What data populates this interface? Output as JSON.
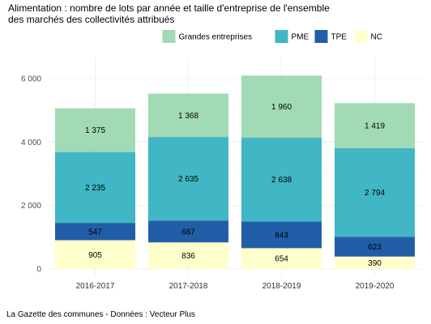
{
  "chart_data": {
    "type": "bar",
    "stacked": true,
    "title_lines": [
      "Alimentation : nombre de lots par année et taille d'entreprise de l'ensemble",
      "des marchés des collectivités attribués"
    ],
    "xlabel": "",
    "ylabel": "",
    "categories": [
      "2016-2017",
      "2017-2018",
      "2018-2019",
      "2019-2020"
    ],
    "series": [
      {
        "name": "NC",
        "color": "#FFFFCC",
        "values": [
          905,
          836,
          654,
          390
        ],
        "labels": [
          "905",
          "836",
          "654",
          "390"
        ]
      },
      {
        "name": "TPE",
        "color": "#225EA8",
        "values": [
          547,
          687,
          843,
          623
        ],
        "labels": [
          "547",
          "687",
          "843",
          "623"
        ]
      },
      {
        "name": "PME",
        "color": "#41B6C4",
        "values": [
          2235,
          2635,
          2638,
          2794
        ],
        "labels": [
          "2 235",
          "2 635",
          "2 638",
          "2 794"
        ]
      },
      {
        "name": "Grandes entreprises",
        "color": "#A1DAB4",
        "values": [
          1375,
          1368,
          1960,
          1419
        ],
        "labels": [
          "1 375",
          "1 368",
          "1 960",
          "1 419"
        ]
      }
    ],
    "legend_order": [
      "Grandes entreprises",
      "PME",
      "TPE",
      "NC"
    ],
    "legend_position": "top",
    "yticks": [
      0,
      2000,
      4000,
      6000
    ],
    "ytick_labels": [
      "0",
      "2 000",
      "4 000",
      "6 000"
    ],
    "ylim": [
      0,
      6300
    ],
    "grid": true
  },
  "source": "La Gazette des communes - Données : Vecteur Plus"
}
